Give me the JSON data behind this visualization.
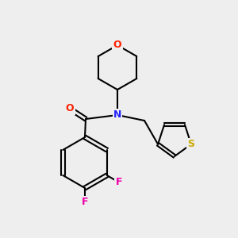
{
  "bg_color": "#eeeeee",
  "bond_color": "#000000",
  "bond_width": 1.5,
  "atom_colors": {
    "O": "#ff2200",
    "N": "#2222ff",
    "S": "#ccaa00",
    "F": "#ee00aa",
    "C": "#000000"
  },
  "font_size": 9,
  "font_size_small": 8
}
